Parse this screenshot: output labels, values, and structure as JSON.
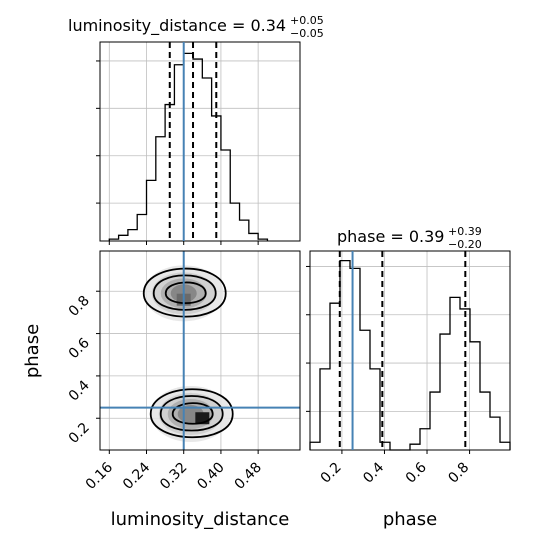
{
  "chart_data": {
    "type": "corner",
    "parameters": [
      "luminosity_distance",
      "phase"
    ],
    "truths": {
      "luminosity_distance": 0.32,
      "phase": 0.25
    },
    "panels": {
      "luminosity_distance_hist": {
        "type": "histogram",
        "title_main": "luminosity_distance = 0.34",
        "title_sup": "+0.05",
        "title_sub": "−0.05",
        "xlim": [
          0.14,
          0.57
        ],
        "ylim": [
          0,
          1.05
        ],
        "grid": true,
        "quantiles": [
          0.29,
          0.34,
          0.39
        ],
        "bin_edges": [
          0.16,
          0.18,
          0.2,
          0.22,
          0.24,
          0.26,
          0.28,
          0.3,
          0.32,
          0.34,
          0.36,
          0.38,
          0.4,
          0.42,
          0.44,
          0.46,
          0.48,
          0.5
        ],
        "counts": [
          0.01,
          0.03,
          0.06,
          0.14,
          0.32,
          0.55,
          0.72,
          0.93,
          0.99,
          0.96,
          0.86,
          0.66,
          0.48,
          0.2,
          0.11,
          0.04,
          0.01
        ]
      },
      "phase_hist": {
        "type": "histogram",
        "title_main": "phase = 0.39",
        "title_sup": "+0.39",
        "title_sub": "−0.20",
        "xlim": [
          0.05,
          0.99
        ],
        "ylim": [
          0,
          1.03
        ],
        "grid": true,
        "quantiles": [
          0.19,
          0.39,
          0.78
        ],
        "bin_edges": [
          0.05,
          0.097,
          0.144,
          0.191,
          0.238,
          0.285,
          0.332,
          0.379,
          0.426,
          0.473,
          0.52,
          0.567,
          0.614,
          0.661,
          0.708,
          0.755,
          0.802,
          0.849,
          0.896,
          0.943,
          0.99
        ],
        "counts": [
          0.04,
          0.42,
          0.76,
          0.98,
          0.94,
          0.62,
          0.42,
          0.04,
          0.0,
          0.0,
          0.03,
          0.11,
          0.3,
          0.6,
          0.79,
          0.73,
          0.56,
          0.3,
          0.17,
          0.04
        ]
      },
      "joint": {
        "type": "scatter_density",
        "xlim": [
          0.14,
          0.57
        ],
        "ylim": [
          0.05,
          0.99
        ],
        "grid": true,
        "clusters": [
          {
            "cx": 0.32,
            "cy": 0.79,
            "peak": [
              0.32,
              0.76
            ]
          },
          {
            "cx": 0.335,
            "cy": 0.22,
            "peak": [
              0.36,
              0.2
            ]
          }
        ]
      }
    },
    "axes": {
      "x_ticks_lum": [
        "0.16",
        "0.24",
        "0.32",
        "0.40",
        "0.48"
      ],
      "x_ticks_phase": [
        "0.2",
        "0.4",
        "0.6",
        "0.8"
      ],
      "y_ticks_phase": [
        "0.2",
        "0.4",
        "0.6",
        "0.8"
      ],
      "xlabel_left": "luminosity_distance",
      "xlabel_right": "phase",
      "ylabel": "phase"
    },
    "colors": {
      "truth": "#4682b4",
      "line": "#000000",
      "grid": "#bfbfbf",
      "density": "#888888"
    }
  }
}
